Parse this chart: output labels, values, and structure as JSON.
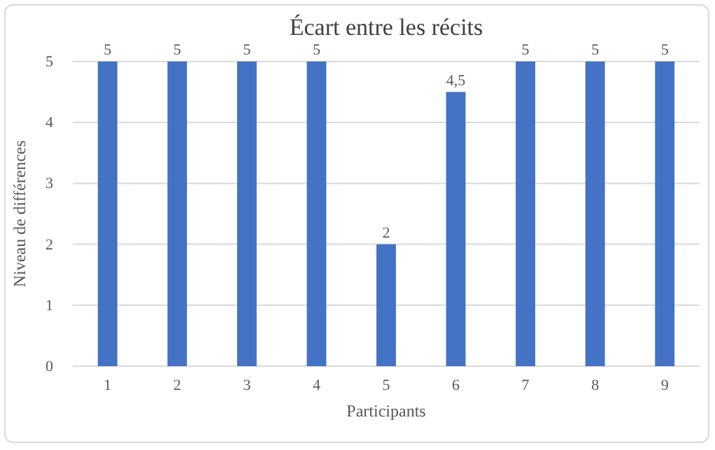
{
  "chart_data": {
    "type": "bar",
    "title": "Écart entre les récits",
    "xlabel": "Participants",
    "ylabel": "Niveau de différences",
    "categories": [
      "1",
      "2",
      "3",
      "4",
      "5",
      "6",
      "7",
      "8",
      "9"
    ],
    "values": [
      5,
      5,
      5,
      5,
      2,
      4.5,
      5,
      5,
      5
    ],
    "value_labels": [
      "5",
      "5",
      "5",
      "5",
      "2",
      "4,5",
      "5",
      "5",
      "5"
    ],
    "color": "#4472c4",
    "ylim": [
      0,
      5
    ],
    "yticks": [
      0,
      1,
      2,
      3,
      4,
      5
    ],
    "grid": "y"
  }
}
